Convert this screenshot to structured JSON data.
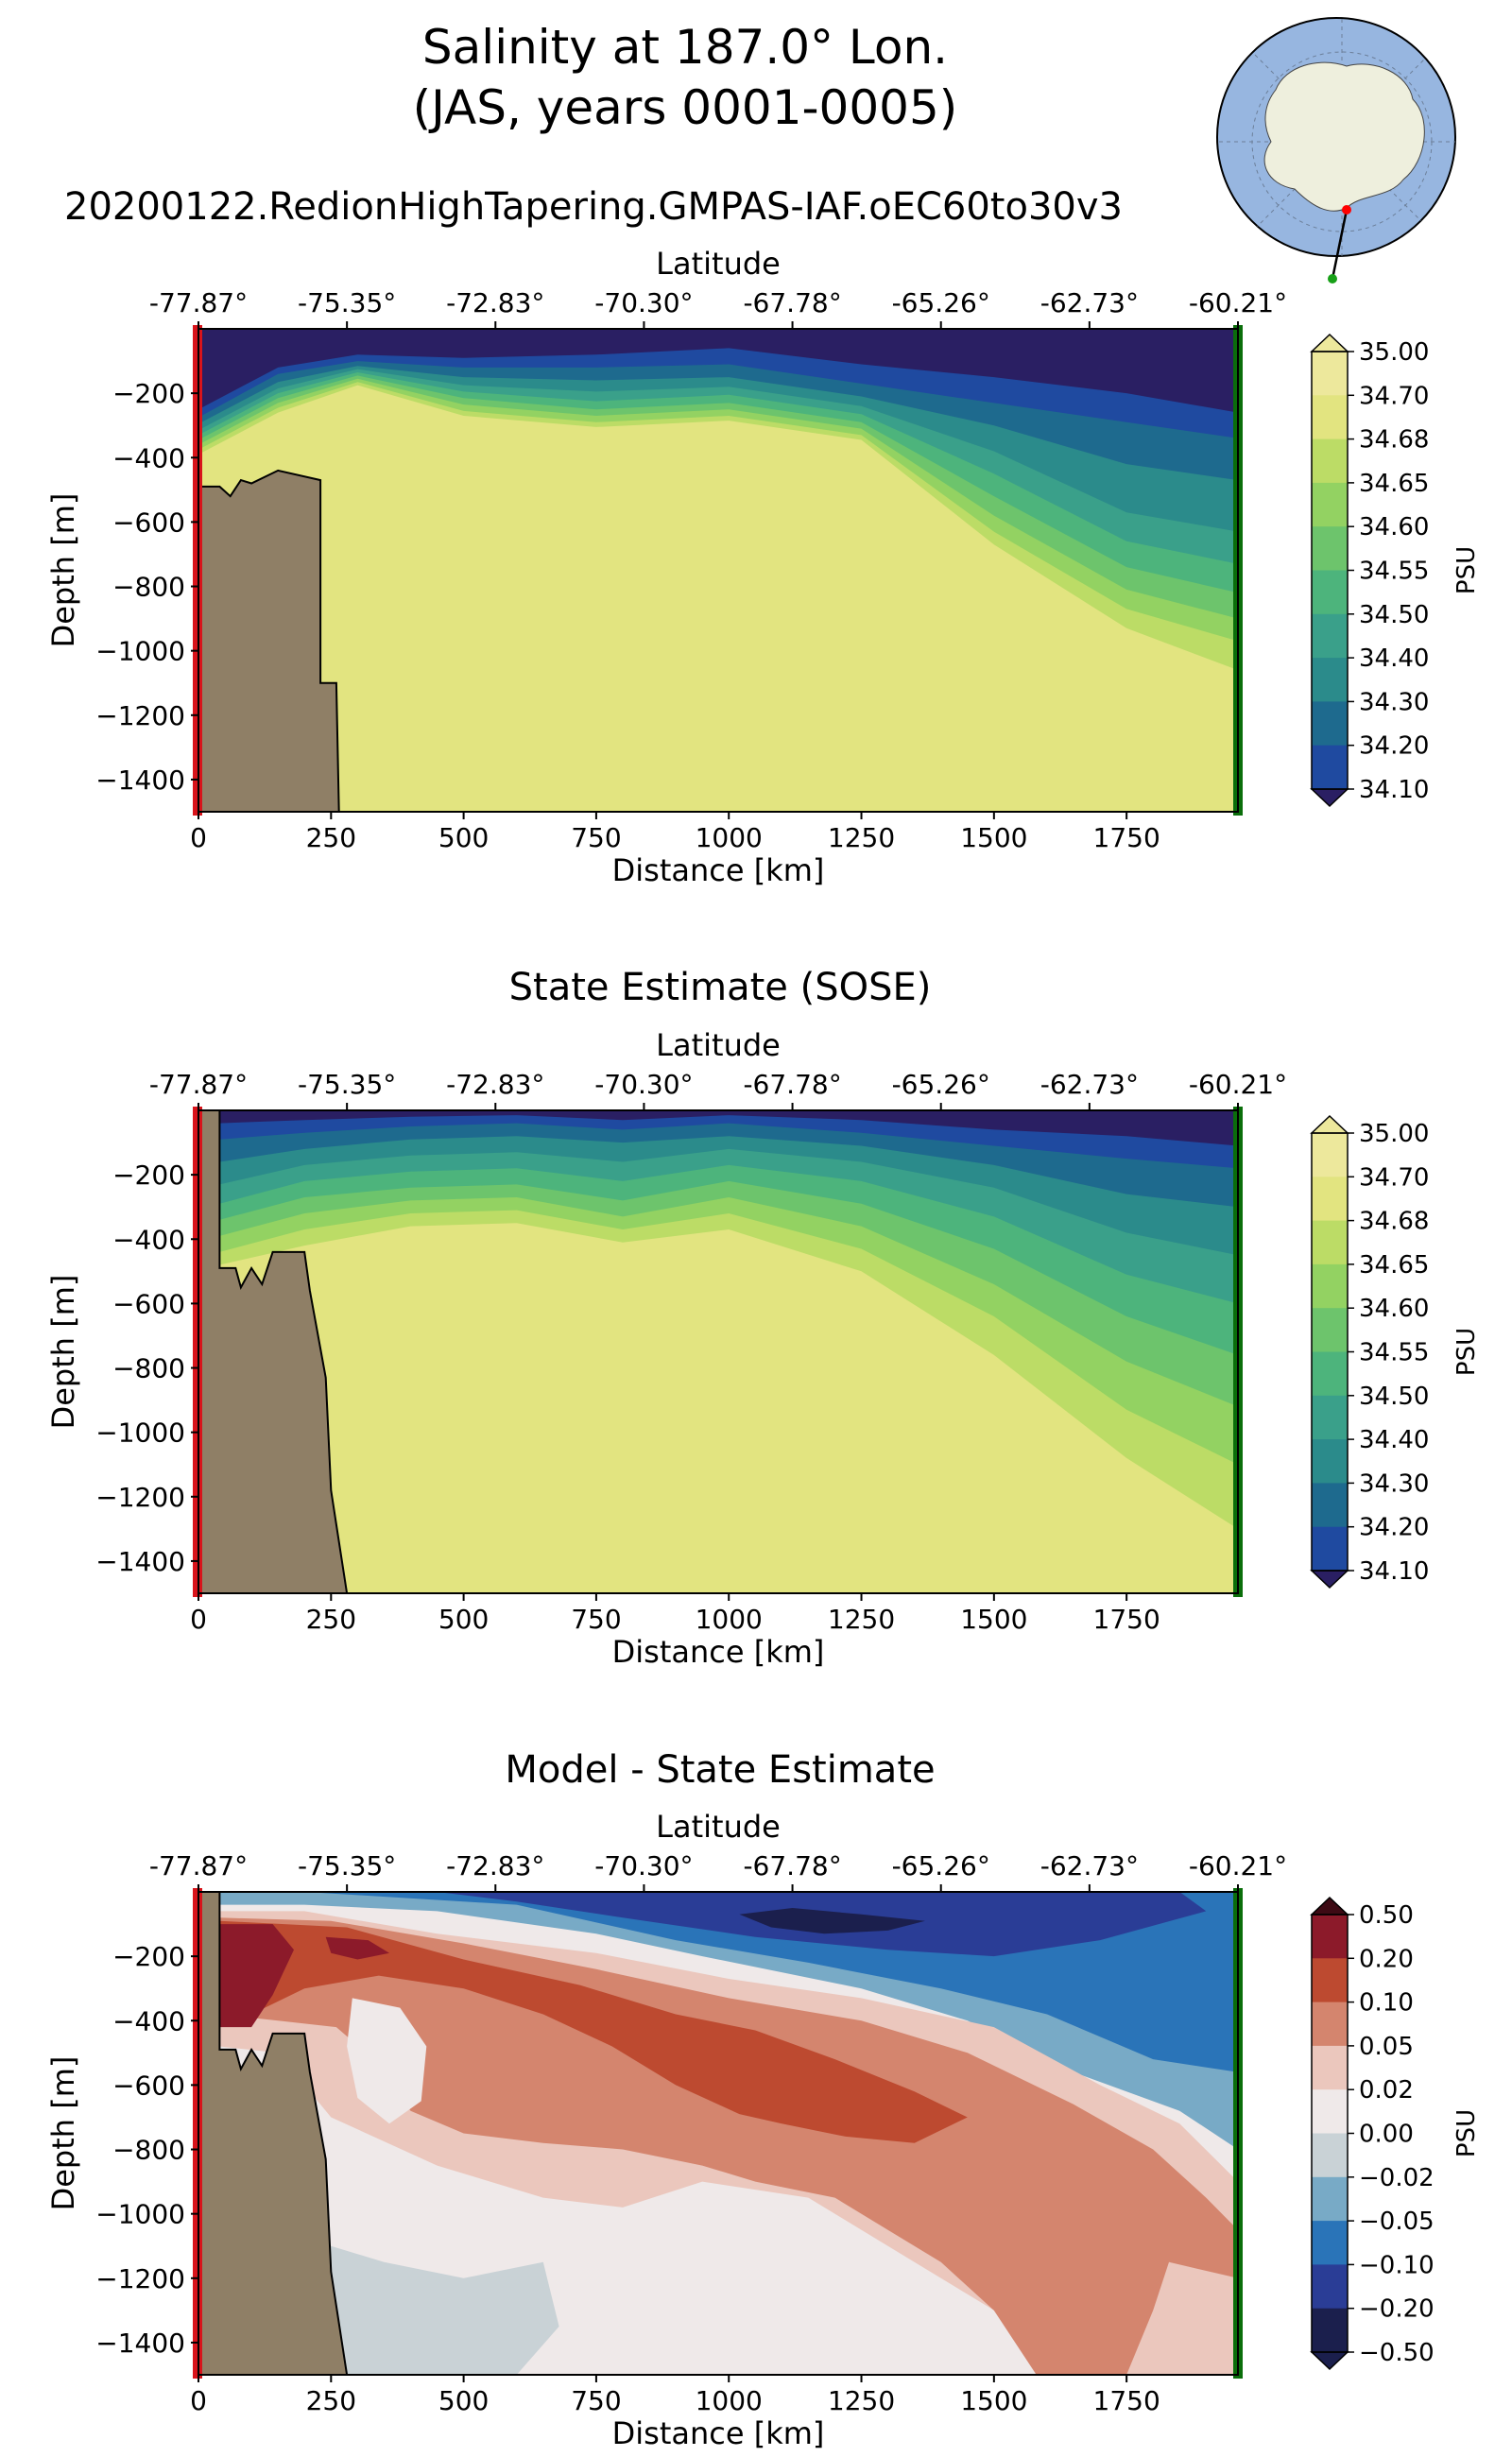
{
  "figure": {
    "title_line1": "Salinity at 187.0° Lon.",
    "title_line2": "(JAS, years 0001-0005)"
  },
  "colors": {
    "land": "#8f7f66",
    "section_start": "#d8141b",
    "section_end": "#0a6e0a",
    "salinity_levels": [
      "#2a1f63",
      "#2e2b9b",
      "#1f4aa0",
      "#1e6a8e",
      "#2b8b8b",
      "#3aa08a",
      "#4db47c",
      "#6dc46c",
      "#93d262",
      "#bcdc66",
      "#e2e480",
      "#ede89c"
    ],
    "diff_levels": [
      "#1b1f4d",
      "#2a3d96",
      "#2a74b8",
      "#78aac6",
      "#c9d2d6",
      "#efe9e9",
      "#ebc7bd",
      "#d4856e",
      "#bd4a30",
      "#8c1a2a",
      "#3d0a14"
    ]
  },
  "inset_map": {
    "region": "Antarctica",
    "description_marker_start": "red dot",
    "description_marker_end": "green dot"
  },
  "chart_data": [
    {
      "type": "contourf",
      "title": "20200122.RedionHighTapering.GMPAS-IAF.oEC60to30v3",
      "xlabel": "Distance [km]",
      "ylabel": "Depth [m]",
      "top_xlabel": "Latitude",
      "xlim": [
        0,
        1960
      ],
      "ylim": [
        -1500,
        0
      ],
      "x_ticks": [
        0,
        250,
        500,
        750,
        1000,
        1250,
        1500,
        1750
      ],
      "y_ticks": [
        -200,
        -400,
        -600,
        -800,
        -1000,
        -1200,
        -1400
      ],
      "top_ticks": [
        "-77.87°",
        "-75.35°",
        "-72.83°",
        "-70.30°",
        "-67.78°",
        "-65.26°",
        "-62.73°",
        "-60.21°"
      ],
      "colorbar": {
        "label": "PSU",
        "ticks": [
          "35.00",
          "34.70",
          "34.68",
          "34.65",
          "34.60",
          "34.55",
          "34.50",
          "34.40",
          "34.30",
          "34.20",
          "34.10"
        ],
        "extend": "both"
      },
      "bathymetry_km_depth": [
        [
          0,
          -490
        ],
        [
          40,
          -490
        ],
        [
          60,
          -520
        ],
        [
          80,
          -470
        ],
        [
          100,
          -480
        ],
        [
          150,
          -440
        ],
        [
          230,
          -470
        ],
        [
          230,
          -1100
        ],
        [
          260,
          -1100
        ],
        [
          265,
          -1500
        ]
      ],
      "layers": [
        {
          "level": 0,
          "depth_profile": [
            [
              0,
              -250
            ],
            [
              150,
              -120
            ],
            [
              300,
              -80
            ],
            [
              500,
              -90
            ],
            [
              750,
              -80
            ],
            [
              1000,
              -60
            ],
            [
              1250,
              -110
            ],
            [
              1500,
              -150
            ],
            [
              1750,
              -200
            ],
            [
              1960,
              -260
            ]
          ]
        },
        {
          "level": 1,
          "depth_profile": [
            [
              0,
              -275
            ],
            [
              150,
              -140
            ],
            [
              300,
              -100
            ],
            [
              500,
              -120
            ],
            [
              750,
              -120
            ],
            [
              1000,
              -110
            ],
            [
              1250,
              -170
            ],
            [
              1500,
              -230
            ],
            [
              1750,
              -290
            ],
            [
              1960,
              -340
            ]
          ]
        },
        {
          "level": 2,
          "depth_profile": [
            [
              0,
              -295
            ],
            [
              150,
              -165
            ],
            [
              300,
              -115
            ],
            [
              500,
              -150
            ],
            [
              750,
              -160
            ],
            [
              1000,
              -150
            ],
            [
              1250,
              -210
            ],
            [
              1500,
              -300
            ],
            [
              1750,
              -420
            ],
            [
              1960,
              -470
            ]
          ]
        },
        {
          "level": 3,
          "depth_profile": [
            [
              0,
              -315
            ],
            [
              150,
              -185
            ],
            [
              300,
              -125
            ],
            [
              500,
              -175
            ],
            [
              750,
              -195
            ],
            [
              1000,
              -180
            ],
            [
              1250,
              -240
            ],
            [
              1500,
              -380
            ],
            [
              1750,
              -570
            ],
            [
              1960,
              -630
            ]
          ]
        },
        {
          "level": 4,
          "depth_profile": [
            [
              0,
              -330
            ],
            [
              150,
              -200
            ],
            [
              300,
              -135
            ],
            [
              500,
              -195
            ],
            [
              750,
              -225
            ],
            [
              1000,
              -205
            ],
            [
              1250,
              -265
            ],
            [
              1500,
              -450
            ],
            [
              1750,
              -660
            ],
            [
              1960,
              -730
            ]
          ]
        },
        {
          "level": 5,
          "depth_profile": [
            [
              0,
              -345
            ],
            [
              150,
              -215
            ],
            [
              300,
              -145
            ],
            [
              500,
              -215
            ],
            [
              750,
              -250
            ],
            [
              1000,
              -230
            ],
            [
              1250,
              -290
            ],
            [
              1500,
              -520
            ],
            [
              1750,
              -740
            ],
            [
              1960,
              -820
            ]
          ]
        },
        {
          "level": 6,
          "depth_profile": [
            [
              0,
              -360
            ],
            [
              150,
              -230
            ],
            [
              300,
              -155
            ],
            [
              500,
              -235
            ],
            [
              750,
              -270
            ],
            [
              1000,
              -250
            ],
            [
              1250,
              -310
            ],
            [
              1500,
              -580
            ],
            [
              1750,
              -810
            ],
            [
              1960,
              -900
            ]
          ]
        },
        {
          "level": 7,
          "depth_profile": [
            [
              0,
              -375
            ],
            [
              150,
              -245
            ],
            [
              300,
              -165
            ],
            [
              500,
              -255
            ],
            [
              750,
              -290
            ],
            [
              1000,
              -270
            ],
            [
              1250,
              -330
            ],
            [
              1500,
              -630
            ],
            [
              1750,
              -870
            ],
            [
              1960,
              -970
            ]
          ]
        },
        {
          "level": 8,
          "depth_profile": [
            [
              0,
              -390
            ],
            [
              150,
              -260
            ],
            [
              300,
              -175
            ],
            [
              500,
              -270
            ],
            [
              750,
              -305
            ],
            [
              1000,
              -285
            ],
            [
              1250,
              -345
            ],
            [
              1500,
              -670
            ],
            [
              1750,
              -930
            ],
            [
              1960,
              -1060
            ]
          ]
        }
      ]
    },
    {
      "type": "contourf",
      "title": "State Estimate (SOSE)",
      "xlabel": "Distance [km]",
      "ylabel": "Depth [m]",
      "top_xlabel": "Latitude",
      "xlim": [
        0,
        1960
      ],
      "ylim": [
        -1500,
        0
      ],
      "x_ticks": [
        0,
        250,
        500,
        750,
        1000,
        1250,
        1500,
        1750
      ],
      "y_ticks": [
        -200,
        -400,
        -600,
        -800,
        -1000,
        -1200,
        -1400
      ],
      "top_ticks": [
        "-77.87°",
        "-75.35°",
        "-72.83°",
        "-70.30°",
        "-67.78°",
        "-65.26°",
        "-62.73°",
        "-60.21°"
      ],
      "colorbar": {
        "label": "PSU",
        "ticks": [
          "35.00",
          "34.70",
          "34.68",
          "34.65",
          "34.60",
          "34.55",
          "34.50",
          "34.40",
          "34.30",
          "34.20",
          "34.10"
        ],
        "extend": "both"
      },
      "bathymetry_km_depth": [
        [
          0,
          -1500
        ],
        [
          0,
          0
        ],
        [
          40,
          0
        ],
        [
          40,
          -490
        ],
        [
          70,
          -490
        ],
        [
          80,
          -550
        ],
        [
          100,
          -490
        ],
        [
          120,
          -540
        ],
        [
          140,
          -440
        ],
        [
          200,
          -440
        ],
        [
          210,
          -560
        ],
        [
          240,
          -830
        ],
        [
          250,
          -1180
        ],
        [
          280,
          -1500
        ]
      ],
      "layers": [
        {
          "level": 0,
          "depth_profile": [
            [
              40,
              -40
            ],
            [
              200,
              -30
            ],
            [
              400,
              -20
            ],
            [
              600,
              -15
            ],
            [
              800,
              -30
            ],
            [
              1000,
              -15
            ],
            [
              1250,
              -30
            ],
            [
              1500,
              -60
            ],
            [
              1750,
              -80
            ],
            [
              1960,
              -110
            ]
          ]
        },
        {
          "level": 1,
          "depth_profile": [
            [
              40,
              -90
            ],
            [
              200,
              -70
            ],
            [
              400,
              -50
            ],
            [
              600,
              -40
            ],
            [
              800,
              -60
            ],
            [
              1000,
              -40
            ],
            [
              1250,
              -70
            ],
            [
              1500,
              -110
            ],
            [
              1750,
              -150
            ],
            [
              1960,
              -180
            ]
          ]
        },
        {
          "level": 2,
          "depth_profile": [
            [
              40,
              -160
            ],
            [
              200,
              -120
            ],
            [
              400,
              -90
            ],
            [
              600,
              -80
            ],
            [
              800,
              -100
            ],
            [
              1000,
              -80
            ],
            [
              1250,
              -110
            ],
            [
              1500,
              -170
            ],
            [
              1750,
              -260
            ],
            [
              1960,
              -300
            ]
          ]
        },
        {
          "level": 3,
          "depth_profile": [
            [
              40,
              -230
            ],
            [
              200,
              -170
            ],
            [
              400,
              -140
            ],
            [
              600,
              -130
            ],
            [
              800,
              -160
            ],
            [
              1000,
              -120
            ],
            [
              1250,
              -160
            ],
            [
              1500,
              -240
            ],
            [
              1750,
              -380
            ],
            [
              1960,
              -450
            ]
          ]
        },
        {
          "level": 4,
          "depth_profile": [
            [
              40,
              -290
            ],
            [
              200,
              -220
            ],
            [
              400,
              -190
            ],
            [
              600,
              -180
            ],
            [
              800,
              -220
            ],
            [
              1000,
              -170
            ],
            [
              1250,
              -220
            ],
            [
              1500,
              -330
            ],
            [
              1750,
              -510
            ],
            [
              1960,
              -600
            ]
          ]
        },
        {
          "level": 5,
          "depth_profile": [
            [
              40,
              -340
            ],
            [
              200,
              -270
            ],
            [
              400,
              -240
            ],
            [
              600,
              -230
            ],
            [
              800,
              -280
            ],
            [
              1000,
              -220
            ],
            [
              1250,
              -290
            ],
            [
              1500,
              -430
            ],
            [
              1750,
              -640
            ],
            [
              1960,
              -760
            ]
          ]
        },
        {
          "level": 6,
          "depth_profile": [
            [
              40,
              -390
            ],
            [
              200,
              -320
            ],
            [
              400,
              -280
            ],
            [
              600,
              -270
            ],
            [
              800,
              -330
            ],
            [
              1000,
              -270
            ],
            [
              1250,
              -360
            ],
            [
              1500,
              -540
            ],
            [
              1750,
              -780
            ],
            [
              1960,
              -920
            ]
          ]
        },
        {
          "level": 7,
          "depth_profile": [
            [
              40,
              -440
            ],
            [
              200,
              -370
            ],
            [
              400,
              -320
            ],
            [
              600,
              -310
            ],
            [
              800,
              -370
            ],
            [
              1000,
              -320
            ],
            [
              1250,
              -430
            ],
            [
              1500,
              -640
            ],
            [
              1750,
              -930
            ],
            [
              1960,
              -1100
            ]
          ]
        },
        {
          "level": 8,
          "depth_profile": [
            [
              40,
              -480
            ],
            [
              200,
              -420
            ],
            [
              400,
              -360
            ],
            [
              600,
              -350
            ],
            [
              800,
              -410
            ],
            [
              1000,
              -370
            ],
            [
              1250,
              -500
            ],
            [
              1500,
              -760
            ],
            [
              1750,
              -1080
            ],
            [
              1960,
              -1300
            ]
          ]
        }
      ]
    },
    {
      "type": "contourf",
      "title": "Model - State Estimate",
      "xlabel": "Distance [km]",
      "ylabel": "Depth [m]",
      "top_xlabel": "Latitude",
      "xlim": [
        0,
        1960
      ],
      "ylim": [
        -1500,
        0
      ],
      "x_ticks": [
        0,
        250,
        500,
        750,
        1000,
        1250,
        1500,
        1750
      ],
      "y_ticks": [
        -200,
        -400,
        -600,
        -800,
        -1000,
        -1200,
        -1400
      ],
      "top_ticks": [
        "-77.87°",
        "-75.35°",
        "-72.83°",
        "-70.30°",
        "-67.78°",
        "-65.26°",
        "-62.73°",
        "-60.21°"
      ],
      "colorbar": {
        "label": "PSU",
        "ticks": [
          "0.50",
          "0.20",
          "0.10",
          "0.05",
          "0.02",
          "0.00",
          "−0.02",
          "−0.05",
          "−0.10",
          "−0.20",
          "−0.50"
        ],
        "extend": "both"
      },
      "bathymetry_km_depth": [
        [
          0,
          -1500
        ],
        [
          0,
          0
        ],
        [
          40,
          0
        ],
        [
          40,
          -490
        ],
        [
          70,
          -490
        ],
        [
          80,
          -550
        ],
        [
          100,
          -490
        ],
        [
          120,
          -540
        ],
        [
          140,
          -440
        ],
        [
          200,
          -440
        ],
        [
          210,
          -560
        ],
        [
          240,
          -830
        ],
        [
          250,
          -1180
        ],
        [
          280,
          -1500
        ]
      ]
    }
  ]
}
